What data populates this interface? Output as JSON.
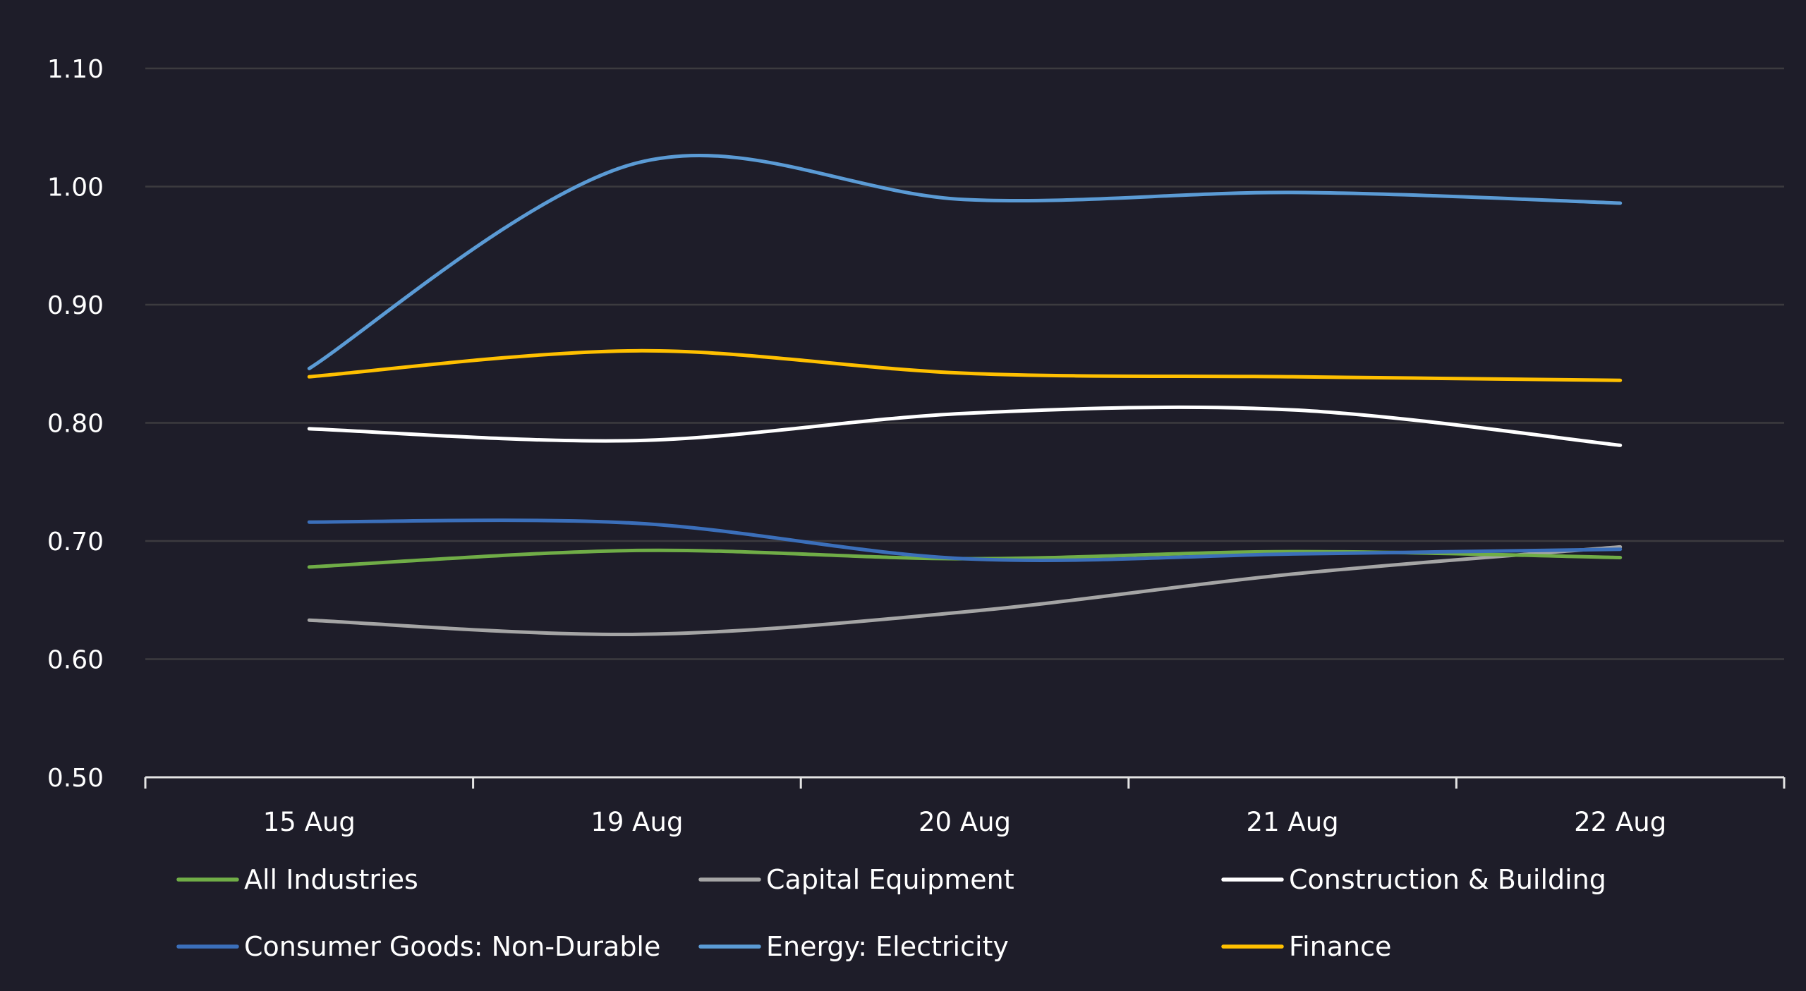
{
  "chart_data": {
    "type": "line",
    "title": "",
    "xlabel": "",
    "ylabel": "",
    "categories": [
      "15 Aug",
      "19 Aug",
      "20 Aug",
      "21 Aug",
      "22 Aug"
    ],
    "ylim": [
      0.5,
      1.1
    ],
    "yticks": [
      "0.50",
      "0.60",
      "0.70",
      "0.80",
      "0.90",
      "1.00",
      "1.10"
    ],
    "ytick_values": [
      0.5,
      0.6,
      0.7,
      0.8,
      0.9,
      1.0,
      1.1
    ],
    "grid": true,
    "smooth": true,
    "legend_position": "bottom",
    "series": [
      {
        "name": "All Industries",
        "color": "#70ad47",
        "values": [
          0.678,
          0.692,
          0.685,
          0.691,
          0.686
        ]
      },
      {
        "name": "Capital Equipment",
        "color": "#a5a5a5",
        "values": [
          0.633,
          0.621,
          0.64,
          0.672,
          0.695
        ]
      },
      {
        "name": "Construction & Building",
        "color": "#ffffff",
        "values": [
          0.795,
          0.785,
          0.808,
          0.811,
          0.781
        ]
      },
      {
        "name": "Consumer Goods: Non-Durable",
        "color": "#3b6fba",
        "values": [
          0.716,
          0.715,
          0.685,
          0.689,
          0.693
        ]
      },
      {
        "name": "Energy: Electricity",
        "color": "#5b9bd5",
        "values": [
          0.846,
          1.02,
          0.989,
          0.995,
          0.986
        ]
      },
      {
        "name": "Finance",
        "color": "#ffc000",
        "values": [
          0.839,
          0.861,
          0.842,
          0.839,
          0.836
        ]
      }
    ]
  }
}
